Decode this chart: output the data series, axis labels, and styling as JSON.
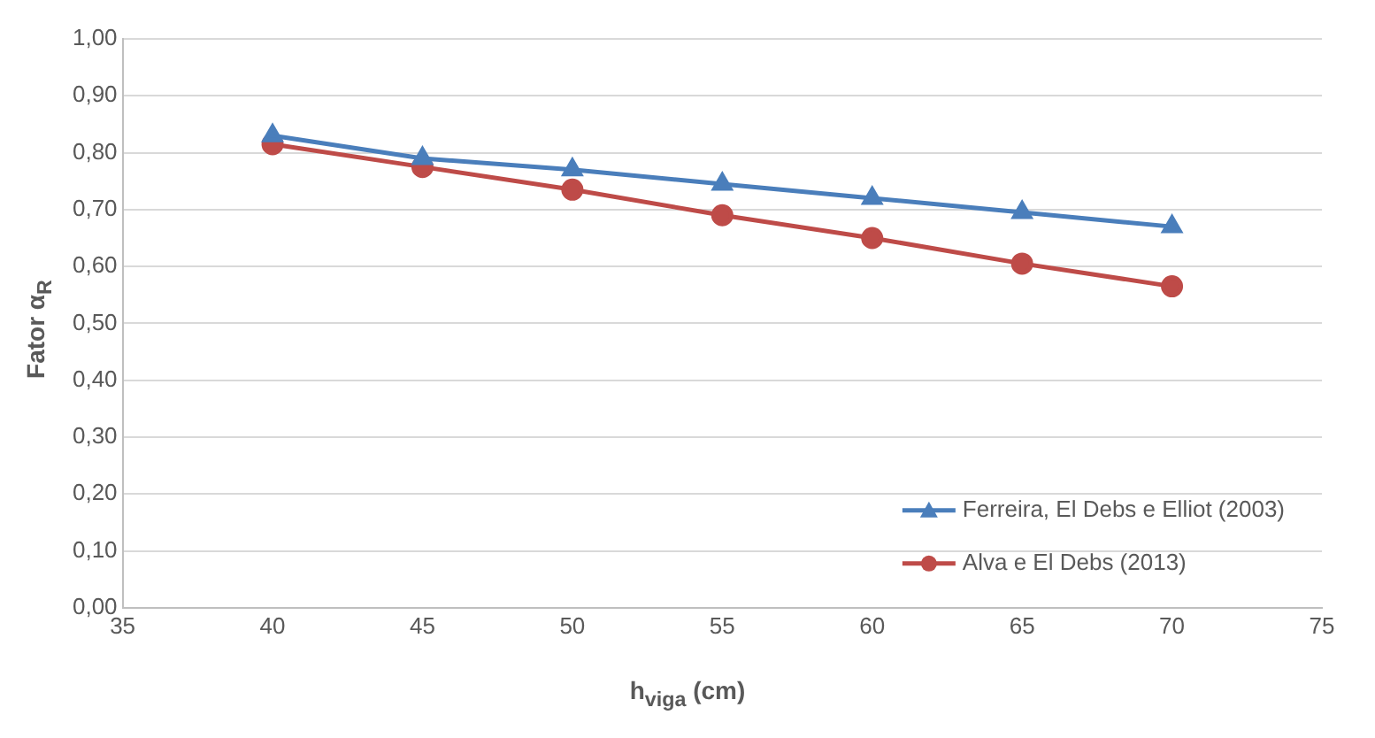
{
  "chart_data": {
    "type": "line",
    "xlabel": "h$_{viga}$ (cm)",
    "ylabel": "Fator α$_{R}$",
    "x": [
      40,
      45,
      50,
      55,
      60,
      65,
      70
    ],
    "series": [
      {
        "name": "Ferreira, El Debs e Elliot (2003)",
        "color": "#4a7ebb",
        "marker": "triangle",
        "values": [
          0.83,
          0.79,
          0.77,
          0.745,
          0.72,
          0.695,
          0.67
        ]
      },
      {
        "name": "Alva e El Debs (2013)",
        "color": "#be4b48",
        "marker": "circle",
        "values": [
          0.815,
          0.775,
          0.735,
          0.69,
          0.65,
          0.605,
          0.565
        ]
      }
    ],
    "xlim": [
      35,
      75
    ],
    "xticks": [
      35,
      40,
      45,
      50,
      55,
      60,
      65,
      70,
      75
    ],
    "ylim": [
      0,
      1
    ],
    "yticks": [
      {
        "value": 0,
        "label": "0,00"
      },
      {
        "value": 0.1,
        "label": "0,10"
      },
      {
        "value": 0.2,
        "label": "0,20"
      },
      {
        "value": 0.3,
        "label": "0,30"
      },
      {
        "value": 0.4,
        "label": "0,40"
      },
      {
        "value": 0.5,
        "label": "0,50"
      },
      {
        "value": 0.6,
        "label": "0,60"
      },
      {
        "value": 0.7,
        "label": "0,70"
      },
      {
        "value": 0.8,
        "label": "0,80"
      },
      {
        "value": 0.9,
        "label": "0,90"
      },
      {
        "value": 1,
        "label": "1,00"
      }
    ],
    "grid": "y",
    "legend": "bottom right",
    "line_style": "solid"
  }
}
